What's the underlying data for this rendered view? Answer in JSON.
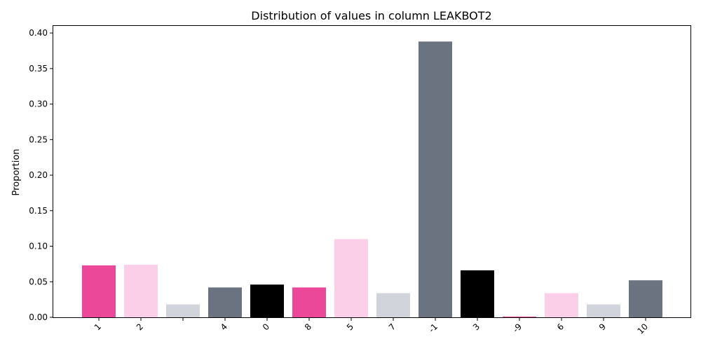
{
  "chart_data": {
    "type": "bar",
    "title": "Distribution of values in column LEAKBOT2",
    "xlabel": "",
    "ylabel": "Proportion",
    "ylim": [
      0,
      0.41
    ],
    "yticks": [
      "0.00",
      "0.05",
      "0.10",
      "0.15",
      "0.20",
      "0.25",
      "0.30",
      "0.35",
      "0.40"
    ],
    "grid": false,
    "legend": "none",
    "categories": [
      "1",
      "2",
      "",
      "4",
      "0",
      "8",
      "5",
      "7",
      "-1",
      "3",
      "-9",
      "6",
      "9",
      "10"
    ],
    "values": [
      0.073,
      0.074,
      0.018,
      0.042,
      0.046,
      0.042,
      0.11,
      0.034,
      0.388,
      0.066,
      0.001,
      0.034,
      0.018,
      0.052
    ],
    "colors": [
      "#ec4899",
      "#fbcfe8",
      "#d1d5db",
      "#6b7280",
      "#000000",
      "#ec4899",
      "#fbcfe8",
      "#d1d5db",
      "#6b7280",
      "#000000",
      "#ec4899",
      "#fbcfe8",
      "#d1d5db",
      "#6b7280"
    ]
  }
}
